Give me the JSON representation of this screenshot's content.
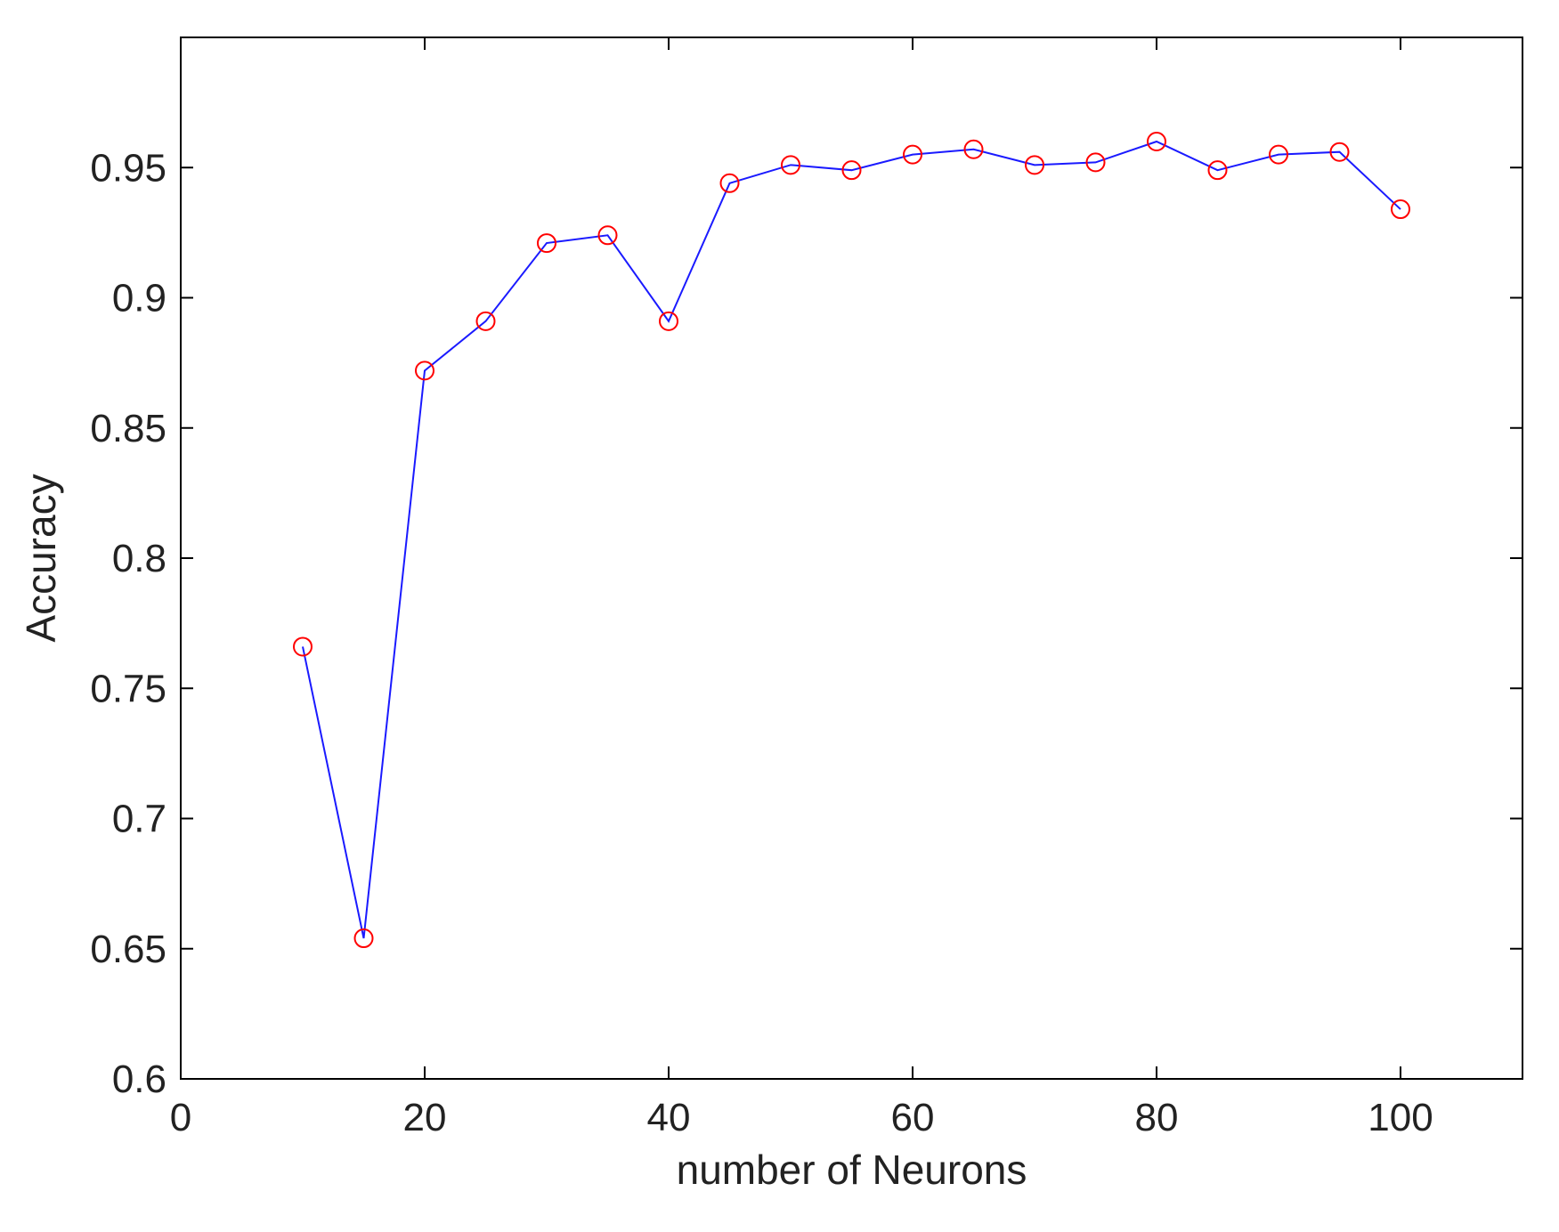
{
  "chart_data": {
    "type": "line",
    "title": "",
    "xlabel": "number of Neurons",
    "ylabel": "Accuracy",
    "xlim": [
      0,
      110
    ],
    "ylim": [
      0.6,
      1.0
    ],
    "xticks": [
      0,
      20,
      40,
      60,
      80,
      100
    ],
    "yticks": [
      0.6,
      0.65,
      0.7,
      0.75,
      0.8,
      0.85,
      0.9,
      0.95
    ],
    "xtick_labels": [
      "0",
      "20",
      "40",
      "60",
      "80",
      "100"
    ],
    "ytick_labels": [
      "0.6",
      "0.65",
      "0.7",
      "0.75",
      "0.8",
      "0.85",
      "0.9",
      "0.95"
    ],
    "grid": false,
    "line_color": "#1a1aff",
    "marker_color": "#ff0000",
    "marker": "circle",
    "series": [
      {
        "x": [
          10,
          15,
          20,
          25,
          30,
          35,
          40,
          45,
          50,
          55,
          60,
          65,
          70,
          75,
          80,
          85,
          90,
          95,
          100
        ],
        "values": [
          0.766,
          0.654,
          0.872,
          0.891,
          0.921,
          0.924,
          0.891,
          0.944,
          0.951,
          0.949,
          0.955,
          0.957,
          0.951,
          0.952,
          0.96,
          0.949,
          0.955,
          0.956,
          0.934
        ]
      }
    ]
  }
}
